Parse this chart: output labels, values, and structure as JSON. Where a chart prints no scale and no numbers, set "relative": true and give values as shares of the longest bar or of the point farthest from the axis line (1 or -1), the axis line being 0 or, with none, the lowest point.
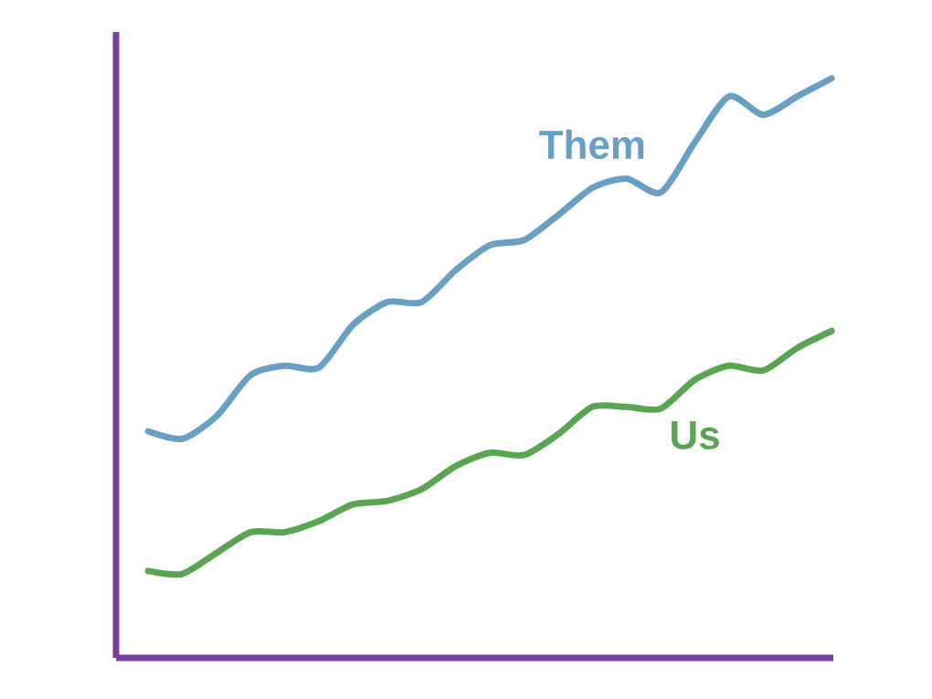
{
  "chart_data": {
    "type": "line",
    "relative": true,
    "categories": [
      null,
      null,
      null,
      null,
      null,
      null,
      null,
      null,
      null,
      null,
      null,
      null,
      null,
      null,
      null,
      null,
      null,
      null,
      null,
      null,
      null
    ],
    "series": [
      {
        "name": "Them",
        "color": "#6a9fc4",
        "values": [
          0.391,
          0.378,
          0.417,
          0.488,
          0.504,
          0.501,
          0.575,
          0.614,
          0.614,
          0.669,
          0.712,
          0.721,
          0.764,
          0.811,
          0.827,
          0.803,
          0.89,
          0.969,
          0.937,
          0.969,
          1
        ]
      },
      {
        "name": "Us",
        "color": "#5aa552",
        "values": [
          0.15,
          0.145,
          0.181,
          0.217,
          0.217,
          0.236,
          0.265,
          0.271,
          0.291,
          0.331,
          0.354,
          0.35,
          0.386,
          0.433,
          0.433,
          0.43,
          0.48,
          0.504,
          0.496,
          0.535,
          0.564
        ]
      }
    ]
  }
}
